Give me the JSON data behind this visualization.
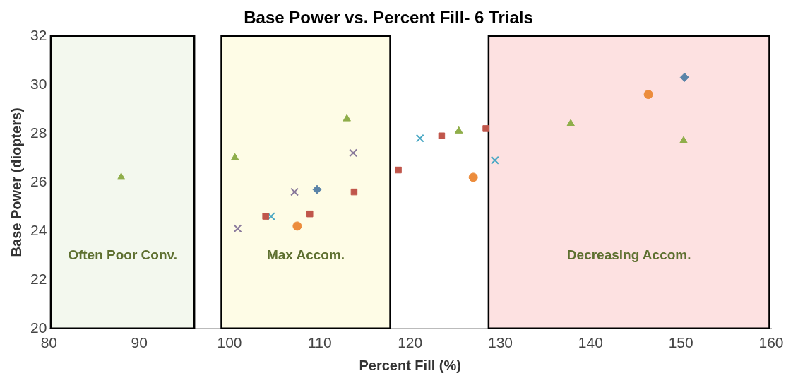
{
  "chart_data": {
    "type": "scatter",
    "title": "Base Power vs. Percent Fill- 6 Trials",
    "xlabel": "Percent Fill (%)",
    "ylabel": "Base Power (diopters)",
    "xlim": [
      80,
      160
    ],
    "xticks": [
      80,
      90,
      100,
      110,
      120,
      130,
      140,
      150,
      160
    ],
    "ylim": [
      20,
      32
    ],
    "yticks": [
      20,
      22,
      24,
      26,
      28,
      30,
      32
    ],
    "grid": false,
    "legend": false,
    "bands": [
      {
        "axis": "x",
        "from": 80.2,
        "to": 96.1,
        "label": "Often Poor Conv.",
        "color": "#f3f8ee"
      },
      {
        "axis": "x",
        "from": 99.1,
        "to": 117.8,
        "label": "Max Accom.",
        "color": "#fefce6"
      },
      {
        "axis": "x",
        "from": 128.7,
        "to": 159.8,
        "label": "Decreasing Accom.",
        "color": "#fde1e1"
      }
    ],
    "series": [
      {
        "color": "#5b84a8",
        "marker": "diamond",
        "x": [
          109.7,
          150.4
        ],
        "values": [
          25.7,
          30.3
        ]
      },
      {
        "color": "#c0564b",
        "marker": "square",
        "x": [
          104.0,
          108.9,
          113.8,
          118.7,
          123.5,
          128.4
        ],
        "values": [
          24.6,
          24.7,
          25.6,
          26.5,
          27.9,
          28.2
        ]
      },
      {
        "color": "#8fae4a",
        "marker": "triangle",
        "x": [
          88.0,
          100.6,
          113.0,
          125.4,
          137.8,
          150.3
        ],
        "values": [
          26.2,
          27.0,
          28.6,
          28.1,
          28.4,
          27.7
        ]
      },
      {
        "color": "#8a7a9c",
        "marker": "cross",
        "x": [
          100.9,
          107.2,
          113.7
        ],
        "values": [
          24.1,
          25.6,
          27.2
        ]
      },
      {
        "color": "#4aa8c4",
        "marker": "cross",
        "x": [
          104.6,
          121.1,
          129.4
        ],
        "values": [
          24.6,
          27.8,
          26.9
        ]
      },
      {
        "color": "#ec8c3c",
        "marker": "circle",
        "x": [
          107.5,
          127.0,
          146.4
        ],
        "values": [
          24.2,
          26.2,
          29.6
        ]
      }
    ]
  }
}
